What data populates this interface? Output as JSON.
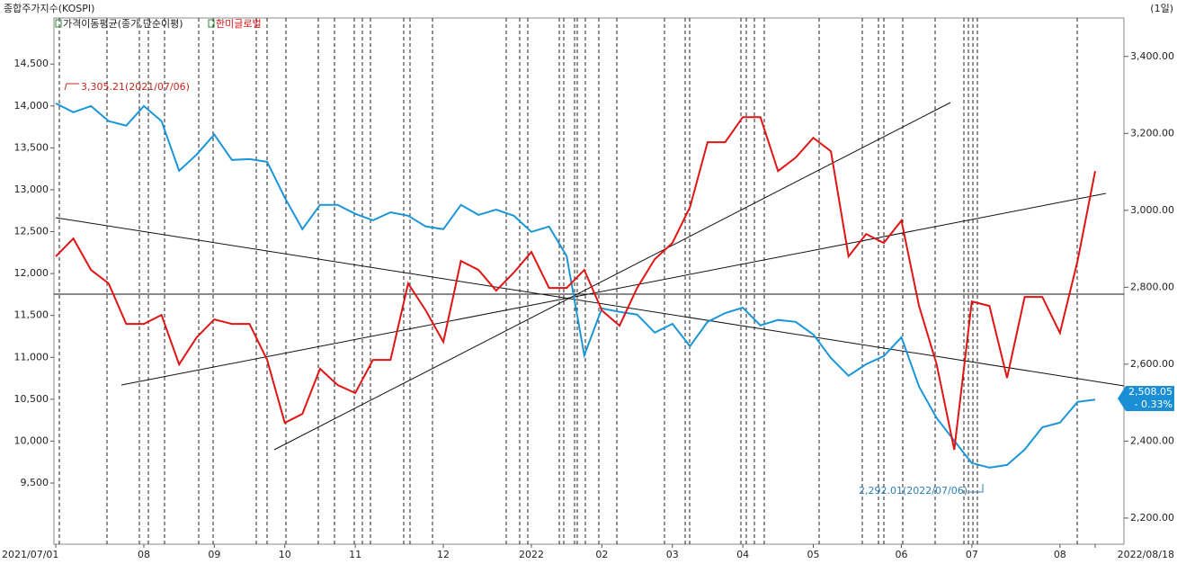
{
  "chart_data": {
    "type": "line",
    "title": "종합주가지수(KOSPI)",
    "period": "(1일)",
    "legend": [
      {
        "label": "가격이동평균(종가,단순이평)",
        "color": "#222222"
      }
    ],
    "categories": [
      "2021/07/01",
      null,
      null,
      null,
      null,
      "08",
      null,
      null,
      null,
      "09",
      null,
      null,
      null,
      "10",
      null,
      null,
      null,
      "11",
      null,
      null,
      null,
      null,
      "12",
      null,
      null,
      null,
      null,
      "2022",
      null,
      null,
      null,
      "02",
      null,
      null,
      null,
      "03",
      null,
      null,
      null,
      "04",
      null,
      null,
      null,
      "05",
      null,
      null,
      null,
      null,
      "06",
      null,
      null,
      null,
      "07",
      null,
      null,
      null,
      null,
      "08",
      null,
      "2022/08/18"
    ],
    "series": [
      {
        "color": "#1a96d8",
        "axis": "y2",
        "values": [
          3278,
          3255,
          3271,
          3232,
          3220,
          3271,
          3232,
          3103,
          3145,
          3197,
          3131,
          3133,
          3126,
          3033,
          2951,
          3014,
          3014,
          2991,
          2974,
          2995,
          2986,
          2958,
          2951,
          3014,
          2988,
          3002,
          2986,
          2944,
          2958,
          2881,
          2623,
          2745,
          2736,
          2729,
          2682,
          2705,
          2647,
          2710,
          2733,
          2747,
          2701,
          2715,
          2710,
          2677,
          2616,
          2570,
          2600,
          2621,
          2670,
          2542,
          2460,
          2401,
          2343,
          2331,
          2338,
          2378,
          2436,
          2448,
          2502,
          2508.05
        ]
      },
      {
        "name": "한미글로벌",
        "color": "#e01414",
        "values": [
          12204,
          12418,
          12043,
          11882,
          11399,
          11399,
          11506,
          10916,
          11238,
          11453,
          11399,
          11399,
          10970,
          10219,
          10326,
          10863,
          10670,
          10573,
          10970,
          10970,
          11882,
          11560,
          11184,
          12150,
          12043,
          11796,
          12011,
          12258,
          11828,
          11828,
          12043,
          11560,
          11378,
          11828,
          12172,
          12365,
          12794,
          13567,
          13567,
          13867,
          13867,
          13223,
          13384,
          13620,
          13459,
          12204,
          12472,
          12365,
          12633,
          11614,
          10916,
          9897,
          11667,
          11614,
          10755,
          11721,
          11721,
          11292,
          12150,
          13223
        ]
      }
    ],
    "ylim": [
      8770,
      15050
    ],
    "yticks": [
      {
        "value": 14500,
        "label": "14,500"
      },
      {
        "value": 14000,
        "label": "14,000"
      },
      {
        "value": 13500,
        "label": "13,500"
      },
      {
        "value": 13000,
        "label": "13,000"
      },
      {
        "value": 12500,
        "label": "12,500"
      },
      {
        "value": 12000,
        "label": "12,000"
      },
      {
        "value": 11500,
        "label": "11,500"
      },
      {
        "value": 11000,
        "label": "11,000"
      },
      {
        "value": 10500,
        "label": "10,500"
      },
      {
        "value": 10000,
        "label": "10,000"
      },
      {
        "value": 9500,
        "label": "9,500"
      }
    ],
    "y2lim": [
      2132,
      3500
    ],
    "y2ticks": [
      {
        "value": 3400,
        "label": "3,400.00"
      },
      {
        "value": 3200,
        "label": "3,200.00"
      },
      {
        "value": 3000,
        "label": "3,000.00"
      },
      {
        "value": 2800,
        "label": "2,800.00"
      },
      {
        "value": 2600,
        "label": "2,600.00"
      },
      {
        "value": 2400,
        "label": "2,400.00"
      },
      {
        "value": 2200,
        "label": "2,200.00"
      }
    ],
    "annotations": [
      "3,305.21(2021/07/06)",
      "2,292.01(2022/07/06)"
    ],
    "last_price": "2,508.05",
    "last_change": "- 0.33%"
  }
}
